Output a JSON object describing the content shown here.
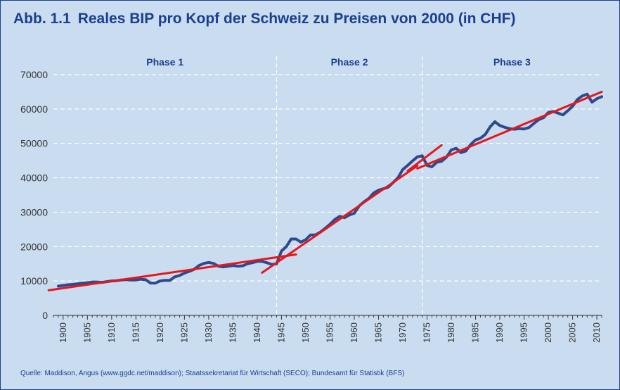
{
  "header": {
    "figure_number": "Abb. 1.1",
    "title": "Reales BIP pro Kopf der Schweiz zu Preisen von 2000 (in CHF)"
  },
  "footer": {
    "source": "Quelle: Maddison, Angus (www.ggdc.net/maddison); Staatssekretariat für Wirtschaft (SECO); Bundesamt für Statistik (BFS)"
  },
  "colors": {
    "background": "#c9dcf0",
    "title": "#1b3f8f",
    "series_line": "#2f4a8c",
    "trend_line": "#e8161b",
    "grid": "#ffffff",
    "axis": "#333333"
  },
  "chart_data": {
    "type": "line",
    "title": "Reales BIP pro Kopf der Schweiz zu Preisen von 2000 (in CHF)",
    "xlabel": "",
    "ylabel": "",
    "xlim": [
      1898,
      2011
    ],
    "ylim": [
      0,
      70000
    ],
    "y_ticks": [
      0,
      10000,
      20000,
      30000,
      40000,
      50000,
      60000,
      70000
    ],
    "x_ticks": [
      1900,
      1905,
      1910,
      1915,
      1920,
      1925,
      1930,
      1935,
      1940,
      1945,
      1950,
      1955,
      1960,
      1965,
      1970,
      1975,
      1980,
      1985,
      1990,
      1995,
      2000,
      2005,
      2010
    ],
    "grid": true,
    "phases": [
      {
        "label": "Phase 1",
        "start": 1898,
        "end": 1944
      },
      {
        "label": "Phase 2",
        "start": 1944,
        "end": 1974
      },
      {
        "label": "Phase 3",
        "start": 1974,
        "end": 2011
      }
    ],
    "series": [
      {
        "name": "",
        "x": [
          1899,
          1900,
          1901,
          1902,
          1903,
          1904,
          1905,
          1906,
          1907,
          1908,
          1909,
          1910,
          1911,
          1912,
          1913,
          1914,
          1915,
          1916,
          1917,
          1918,
          1919,
          1920,
          1921,
          1922,
          1923,
          1924,
          1925,
          1926,
          1927,
          1928,
          1929,
          1930,
          1931,
          1932,
          1933,
          1934,
          1935,
          1936,
          1937,
          1938,
          1939,
          1940,
          1941,
          1942,
          1943,
          1944,
          1945,
          1946,
          1947,
          1948,
          1949,
          1950,
          1951,
          1952,
          1953,
          1954,
          1955,
          1956,
          1957,
          1958,
          1959,
          1960,
          1961,
          1962,
          1963,
          1964,
          1965,
          1966,
          1967,
          1968,
          1969,
          1970,
          1971,
          1972,
          1973,
          1974,
          1975,
          1976,
          1977,
          1978,
          1979,
          1980,
          1981,
          1982,
          1983,
          1984,
          1985,
          1986,
          1987,
          1988,
          1989,
          1990,
          1991,
          1992,
          1993,
          1994,
          1995,
          1996,
          1997,
          1998,
          1999,
          2000,
          2001,
          2002,
          2003,
          2004,
          2005,
          2006,
          2007,
          2008,
          2009,
          2010,
          2011
        ],
        "y": [
          8500,
          8700,
          8900,
          9000,
          9200,
          9400,
          9500,
          9700,
          9700,
          9600,
          9800,
          10000,
          10100,
          10300,
          10400,
          10300,
          10300,
          10500,
          10400,
          9400,
          9400,
          10000,
          10200,
          10200,
          11200,
          11600,
          12300,
          12800,
          13400,
          14500,
          15100,
          15400,
          15100,
          14300,
          14100,
          14300,
          14500,
          14300,
          14400,
          15000,
          15300,
          15700,
          15700,
          15300,
          14800,
          15000,
          18700,
          20000,
          22200,
          22200,
          21300,
          22000,
          23400,
          23400,
          24200,
          25300,
          26500,
          27900,
          28800,
          28400,
          29200,
          29700,
          31800,
          33000,
          34000,
          35600,
          36400,
          36800,
          37300,
          38600,
          40000,
          42400,
          43600,
          44900,
          46100,
          46400,
          43600,
          43200,
          44500,
          44800,
          46000,
          48100,
          48600,
          47300,
          47800,
          49700,
          51000,
          51500,
          52600,
          54800,
          56300,
          55200,
          54700,
          54300,
          54100,
          54300,
          54200,
          54600,
          55800,
          56900,
          57500,
          59000,
          59300,
          58800,
          58300,
          59500,
          60800,
          62800,
          63800,
          64300,
          62000,
          63000,
          63600
        ]
      }
    ],
    "trend_lines": [
      {
        "x": [
          1897,
          1948
        ],
        "y": [
          7300,
          17700
        ]
      },
      {
        "x": [
          1941,
          1973
        ],
        "y": [
          12400,
          43500
        ]
      },
      {
        "x": [
          1971,
          1978
        ],
        "y": [
          42000,
          49500
        ]
      },
      {
        "x": [
          1973,
          2011
        ],
        "y": [
          42700,
          65000
        ]
      }
    ]
  }
}
